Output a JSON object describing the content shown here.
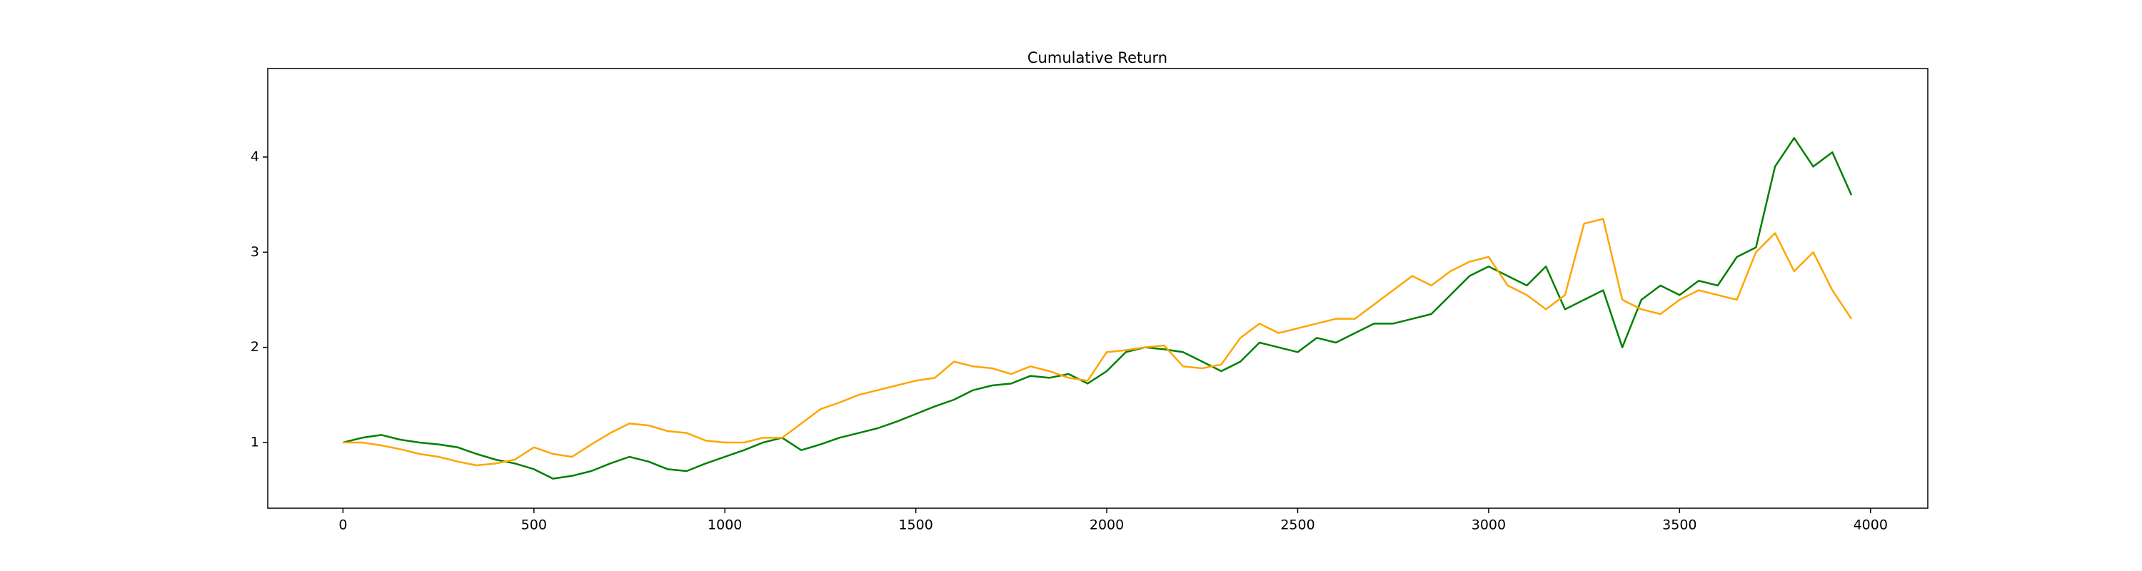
{
  "chart_data": {
    "type": "line",
    "title": "Cumulative Return",
    "x": [
      0,
      50,
      100,
      150,
      200,
      250,
      300,
      350,
      400,
      450,
      500,
      550,
      600,
      650,
      700,
      750,
      800,
      850,
      900,
      950,
      1000,
      1050,
      1100,
      1150,
      1200,
      1250,
      1300,
      1350,
      1400,
      1450,
      1500,
      1550,
      1600,
      1650,
      1700,
      1750,
      1800,
      1850,
      1900,
      1950,
      2000,
      2050,
      2100,
      2150,
      2200,
      2250,
      2300,
      2350,
      2400,
      2450,
      2500,
      2550,
      2600,
      2650,
      2700,
      2750,
      2800,
      2850,
      2900,
      2950,
      3000,
      3050,
      3100,
      3150,
      3200,
      3250,
      3300,
      3350,
      3400,
      3450,
      3500,
      3550,
      3600,
      3650,
      3700,
      3750,
      3800,
      3850,
      3900,
      3950
    ],
    "series": [
      {
        "color": "#008000",
        "values": [
          1.0,
          1.05,
          1.08,
          1.03,
          1.0,
          0.98,
          0.95,
          0.88,
          0.82,
          0.78,
          0.72,
          0.62,
          0.65,
          0.7,
          0.78,
          0.85,
          0.8,
          0.72,
          0.7,
          0.78,
          0.85,
          0.92,
          1.0,
          1.05,
          0.92,
          0.98,
          1.05,
          1.1,
          1.15,
          1.22,
          1.3,
          1.38,
          1.45,
          1.55,
          1.6,
          1.62,
          1.7,
          1.68,
          1.72,
          1.62,
          1.75,
          1.95,
          2.0,
          1.98,
          1.95,
          1.85,
          1.75,
          1.85,
          2.05,
          2.0,
          1.95,
          2.1,
          2.05,
          2.15,
          2.25,
          2.25,
          2.3,
          2.35,
          2.55,
          2.75,
          2.85,
          2.75,
          2.65,
          2.85,
          2.4,
          2.5,
          2.6,
          2.0,
          2.5,
          2.65,
          2.55,
          2.7,
          2.65,
          2.95,
          3.05,
          3.9,
          4.2,
          3.9,
          4.05,
          3.6
        ]
      },
      {
        "color": "#ffa500",
        "values": [
          1.0,
          1.0,
          0.97,
          0.93,
          0.88,
          0.85,
          0.8,
          0.76,
          0.78,
          0.82,
          0.95,
          0.88,
          0.85,
          0.98,
          1.1,
          1.2,
          1.18,
          1.12,
          1.1,
          1.02,
          1.0,
          1.0,
          1.05,
          1.05,
          1.2,
          1.35,
          1.42,
          1.5,
          1.55,
          1.6,
          1.65,
          1.68,
          1.85,
          1.8,
          1.78,
          1.72,
          1.8,
          1.75,
          1.68,
          1.65,
          1.95,
          1.97,
          2.0,
          2.02,
          1.8,
          1.78,
          1.82,
          2.1,
          2.25,
          2.15,
          2.2,
          2.25,
          2.3,
          2.3,
          2.45,
          2.6,
          2.75,
          2.65,
          2.8,
          2.9,
          2.95,
          2.65,
          2.55,
          2.4,
          2.55,
          3.3,
          3.35,
          2.5,
          2.4,
          2.35,
          2.5,
          2.6,
          2.55,
          2.5,
          3.0,
          3.2,
          2.8,
          3.0,
          2.6,
          2.3
        ]
      }
    ],
    "xlim": [
      -197,
      4150
    ],
    "ylim": [
      0.31,
      4.93
    ],
    "xticks": [
      0,
      500,
      1000,
      1500,
      2000,
      2500,
      3000,
      3500,
      4000
    ],
    "yticks": [
      1,
      2,
      3,
      4
    ]
  }
}
